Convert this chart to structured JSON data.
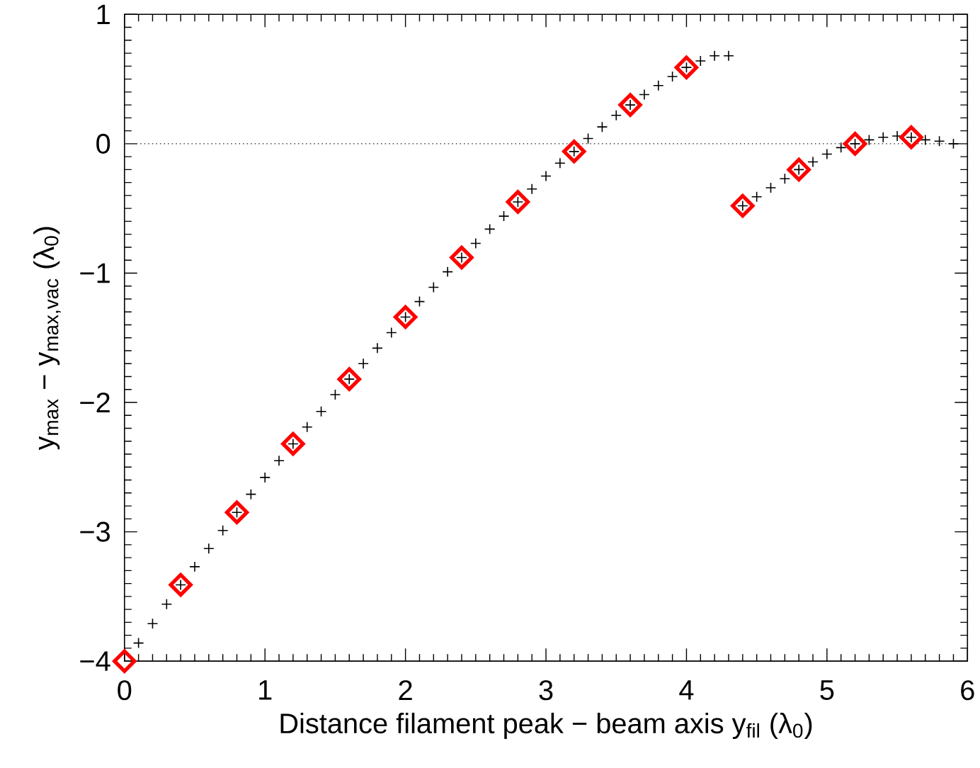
{
  "chart_data": {
    "type": "scatter",
    "xlabel": "Distance filament peak − beam axis y$_{fil}$ (λ$_{0}$)",
    "ylabel": "y$_{max}$ − y$_{max,vac}$ (λ$_{0}$)",
    "xlim": [
      0,
      6
    ],
    "ylim": [
      -4,
      1
    ],
    "xticks": [
      0,
      1,
      2,
      3,
      4,
      5,
      6
    ],
    "yticks": [
      {
        "value": -4,
        "label": "−4"
      },
      {
        "value": -3,
        "label": "−3"
      },
      {
        "value": -2,
        "label": "−2"
      },
      {
        "value": -1,
        "label": "−1"
      },
      0,
      1
    ],
    "ref_lines": [
      {
        "axis": "y",
        "value": 0,
        "color": "#555555",
        "line_style": "dotted"
      }
    ],
    "series": [
      {
        "color": "#000000",
        "marker": "cross",
        "x": [
          0.1,
          0.2,
          0.3,
          0.4,
          0.5,
          0.6,
          0.7,
          0.8,
          0.9,
          1.0,
          1.1,
          1.2,
          1.3,
          1.4,
          1.5,
          1.6,
          1.7,
          1.8,
          1.9,
          2.0,
          2.1,
          2.2,
          2.3,
          2.4,
          2.5,
          2.6,
          2.7,
          2.8,
          2.9,
          3.0,
          3.1,
          3.2,
          3.3,
          3.4,
          3.5,
          3.6,
          3.7,
          3.8,
          3.9,
          4.0,
          4.1,
          4.2,
          4.3,
          4.4,
          4.5,
          4.6,
          4.7,
          4.8,
          4.9,
          5.0,
          5.1,
          5.2,
          5.3,
          5.4,
          5.5,
          5.6,
          5.7,
          5.8,
          5.9
        ],
        "values": [
          -3.86,
          -3.71,
          -3.56,
          -3.41,
          -3.27,
          -3.13,
          -2.99,
          -2.85,
          -2.71,
          -2.58,
          -2.45,
          -2.32,
          -2.19,
          -2.07,
          -1.94,
          -1.82,
          -1.7,
          -1.58,
          -1.46,
          -1.34,
          -1.22,
          -1.11,
          -0.99,
          -0.88,
          -0.77,
          -0.66,
          -0.56,
          -0.45,
          -0.35,
          -0.25,
          -0.15,
          -0.06,
          0.04,
          0.13,
          0.22,
          0.3,
          0.38,
          0.45,
          0.52,
          0.59,
          0.64,
          0.68,
          0.68,
          -0.48,
          -0.41,
          -0.34,
          -0.27,
          -0.2,
          -0.14,
          -0.08,
          -0.03,
          0.0,
          0.03,
          0.05,
          0.06,
          0.05,
          0.03,
          0.02,
          0.0
        ]
      },
      {
        "color": "#ff0000",
        "marker": "diamond",
        "x": [
          0,
          0.4,
          0.8,
          1.2,
          1.6,
          2.0,
          2.4,
          2.8,
          3.2,
          3.6,
          4.0,
          4.4,
          4.8,
          5.2,
          5.6
        ],
        "values": [
          -4.0,
          -3.41,
          -2.85,
          -2.32,
          -1.82,
          -1.34,
          -0.88,
          -0.45,
          -0.06,
          0.3,
          0.59,
          -0.48,
          -0.2,
          0.0,
          0.05
        ]
      }
    ]
  }
}
